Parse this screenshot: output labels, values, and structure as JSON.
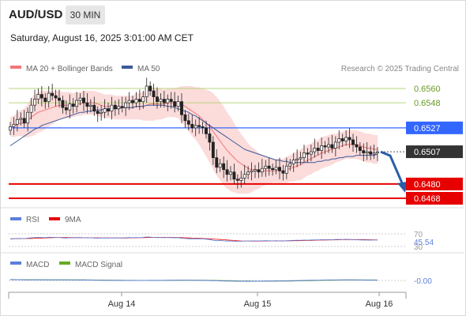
{
  "header": {
    "symbol": "AUD/USD",
    "timeframe": "30 MIN",
    "datetime": "Saturday, August 16, 2025 3:01:00 AM CET"
  },
  "legend": {
    "ma20": "MA 20 + Bollinger Bands",
    "ma50": "MA 50",
    "research": "Research © 2025 Trading Central"
  },
  "colors": {
    "up_candle": "#ffffff",
    "down_candle": "#222222",
    "bollinger_fill": "#fbd5d5",
    "ma20": "#f07878",
    "ma50": "#3b5a99",
    "resistance": "#b6d77a",
    "pivot": "#3366ff",
    "support": "#e60000",
    "last": "#333333",
    "rsi": "#5b7fd9",
    "rsi_ma": "#e60000",
    "macd": "#5b7fd9",
    "macd_signal": "#66aa22",
    "arrow": "#2a5caa"
  },
  "chart_data": [
    {
      "type": "candlestick",
      "title": "AUD/USD",
      "x_ticks": [
        "Aug 14",
        "Aug 15",
        "Aug 16"
      ],
      "levels": [
        {
          "label": "0.6560",
          "value": 0.656,
          "kind": "resistance"
        },
        {
          "label": "0.6548",
          "value": 0.6548,
          "kind": "resistance"
        },
        {
          "label": "0.6527",
          "value": 0.6527,
          "kind": "pivot"
        },
        {
          "label": "0.6507",
          "value": 0.6507,
          "kind": "last"
        },
        {
          "label": "0.6480",
          "value": 0.648,
          "kind": "support"
        },
        {
          "label": "0.6468",
          "value": 0.6468,
          "kind": "support"
        }
      ],
      "close": [
        0.6528,
        0.653,
        0.6534,
        0.6535,
        0.6531,
        0.654,
        0.6546,
        0.6551,
        0.6555,
        0.6552,
        0.6549,
        0.6556,
        0.6554,
        0.6552,
        0.655,
        0.6544,
        0.6542,
        0.6547,
        0.6545,
        0.655,
        0.6552,
        0.6548,
        0.6545,
        0.6546,
        0.6541,
        0.6539,
        0.654,
        0.6543,
        0.6541,
        0.6546,
        0.6543,
        0.6545,
        0.6544,
        0.6548,
        0.655,
        0.6548,
        0.6551,
        0.6549,
        0.6553,
        0.6562,
        0.6558,
        0.6553,
        0.6549,
        0.6551,
        0.6548,
        0.6551,
        0.6549,
        0.6545,
        0.6549,
        0.6538,
        0.6533,
        0.653,
        0.6527,
        0.6529,
        0.6528,
        0.6527,
        0.6522,
        0.6515,
        0.6502,
        0.6494,
        0.6497,
        0.6492,
        0.6488,
        0.649,
        0.6484,
        0.6483,
        0.6485,
        0.6488,
        0.649,
        0.6491,
        0.6492,
        0.649,
        0.6493,
        0.6495,
        0.6493,
        0.6492,
        0.6494,
        0.6491,
        0.6489,
        0.6495,
        0.6497,
        0.65,
        0.6501,
        0.6502,
        0.6506,
        0.6505,
        0.6507,
        0.651,
        0.6508,
        0.6512,
        0.6511,
        0.6513,
        0.651,
        0.6515,
        0.6518,
        0.6516,
        0.6519,
        0.6517,
        0.6513,
        0.6511,
        0.6508,
        0.6506,
        0.6507,
        0.6505,
        0.6506,
        0.6507
      ],
      "ma20": [
        0.6528,
        0.6528,
        0.653,
        0.6531,
        0.6531,
        0.6533,
        0.6536,
        0.6538,
        0.654,
        0.6541,
        0.6542,
        0.6543,
        0.6544,
        0.6545,
        0.6546,
        0.6546,
        0.6546,
        0.6546,
        0.6546,
        0.6547,
        0.6547,
        0.6548,
        0.6548,
        0.6548,
        0.6548,
        0.6547,
        0.6546,
        0.6545,
        0.6545,
        0.6545,
        0.6544,
        0.6544,
        0.6544,
        0.6544,
        0.6544,
        0.6544,
        0.6545,
        0.6545,
        0.6545,
        0.6546,
        0.6547,
        0.6547,
        0.6547,
        0.6547,
        0.6547,
        0.6548,
        0.6548,
        0.6548,
        0.6548,
        0.6547,
        0.6545,
        0.6543,
        0.6541,
        0.6539,
        0.6537,
        0.6534,
        0.6531,
        0.6528,
        0.6524,
        0.652,
        0.6516,
        0.6512,
        0.6508,
        0.6505,
        0.6502,
        0.6499,
        0.6497,
        0.6495,
        0.6493,
        0.6492,
        0.6492,
        0.6491,
        0.6491,
        0.6491,
        0.6491,
        0.6491,
        0.6491,
        0.6491,
        0.6491,
        0.6492,
        0.6493,
        0.6494,
        0.6495,
        0.6496,
        0.6498,
        0.65,
        0.6501,
        0.6503,
        0.6504,
        0.6506,
        0.6507,
        0.6508,
        0.6509,
        0.651,
        0.6511,
        0.6512,
        0.6513,
        0.6513,
        0.6513,
        0.6513,
        0.6512,
        0.6511,
        0.651,
        0.651,
        0.6509,
        0.6509
      ],
      "ma50": [
        0.6512,
        0.6514,
        0.6516,
        0.6518,
        0.652,
        0.6522,
        0.6524,
        0.6526,
        0.6527,
        0.6529,
        0.653,
        0.6531,
        0.6532,
        0.6533,
        0.6534,
        0.6535,
        0.6536,
        0.6537,
        0.6538,
        0.6539,
        0.654,
        0.654,
        0.6541,
        0.6541,
        0.6542,
        0.6542,
        0.6542,
        0.6543,
        0.6543,
        0.6543,
        0.6543,
        0.6543,
        0.6544,
        0.6544,
        0.6544,
        0.6544,
        0.6545,
        0.6545,
        0.6545,
        0.6546,
        0.6546,
        0.6546,
        0.6546,
        0.6546,
        0.6546,
        0.6545,
        0.6545,
        0.6544,
        0.6543,
        0.6542,
        0.6541,
        0.654,
        0.6538,
        0.6537,
        0.6535,
        0.6533,
        0.6531,
        0.6529,
        0.6527,
        0.6525,
        0.6523,
        0.6521,
        0.6519,
        0.6517,
        0.6515,
        0.6513,
        0.6511,
        0.6509,
        0.6508,
        0.6507,
        0.6506,
        0.6505,
        0.6504,
        0.6503,
        0.6502,
        0.6501,
        0.65,
        0.65,
        0.6499,
        0.6499,
        0.6498,
        0.6498,
        0.6498,
        0.6498,
        0.6498,
        0.6498,
        0.6498,
        0.6498,
        0.6499,
        0.6499,
        0.65,
        0.65,
        0.6501,
        0.6501,
        0.6502,
        0.6502,
        0.6503,
        0.6503,
        0.6503,
        0.6504,
        0.6504,
        0.6504,
        0.6504,
        0.6504,
        0.6504,
        0.6505
      ],
      "bb_width": [
        0.0008,
        0.0009,
        0.001,
        0.0011,
        0.0012,
        0.0014,
        0.0016,
        0.0017,
        0.0017,
        0.0017,
        0.0016,
        0.0015,
        0.0014,
        0.0013,
        0.0012,
        0.0011,
        0.0011,
        0.0011,
        0.001,
        0.001,
        0.001,
        0.001,
        0.001,
        0.001,
        0.001,
        0.001,
        0.001,
        0.001,
        0.001,
        0.001,
        0.001,
        0.001,
        0.001,
        0.001,
        0.001,
        0.001,
        0.0011,
        0.0011,
        0.0012,
        0.0013,
        0.0014,
        0.0014,
        0.0013,
        0.0013,
        0.0012,
        0.0012,
        0.0012,
        0.0012,
        0.0013,
        0.0015,
        0.0017,
        0.0019,
        0.0021,
        0.0022,
        0.0024,
        0.0026,
        0.0028,
        0.003,
        0.0032,
        0.0033,
        0.0033,
        0.0033,
        0.0032,
        0.0031,
        0.0029,
        0.0027,
        0.0025,
        0.0023,
        0.0021,
        0.0019,
        0.0017,
        0.0015,
        0.0013,
        0.0012,
        0.0011,
        0.001,
        0.001,
        0.001,
        0.001,
        0.0011,
        0.0011,
        0.0012,
        0.0012,
        0.0013,
        0.0013,
        0.0013,
        0.0013,
        0.0013,
        0.0013,
        0.0013,
        0.0013,
        0.0013,
        0.0013,
        0.0012,
        0.0012,
        0.0012,
        0.0012,
        0.0012,
        0.0012,
        0.0012,
        0.0012,
        0.0012,
        0.0012,
        0.0012,
        0.0012,
        0.0012
      ],
      "forecast_arrow": {
        "from": 0.6507,
        "to": 0.6474
      }
    },
    {
      "type": "line",
      "title": "RSI",
      "series": [
        {
          "name": "RSI"
        },
        {
          "name": "9MA"
        }
      ],
      "levels": [
        {
          "label": "70",
          "value": 70
        },
        {
          "label": "30",
          "value": 30
        }
      ],
      "last_value_label": "45.54",
      "ylim": [
        20,
        80
      ]
    },
    {
      "type": "line",
      "title": "MACD",
      "series": [
        {
          "name": "MACD"
        },
        {
          "name": "MACD Signal"
        }
      ],
      "last_value_label": "-0.00"
    }
  ]
}
